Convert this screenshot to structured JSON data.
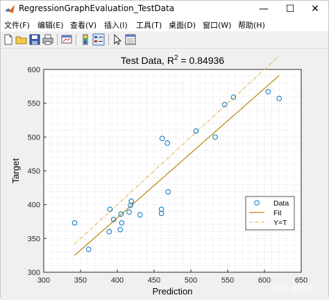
{
  "window": {
    "title": "RegressionGraphEvaluation_TestData"
  },
  "menu": [
    "文件(F)",
    "编辑(E)",
    "查看(V)",
    "插入(I)",
    "工具(T)",
    "桌面(D)",
    "窗口(W)",
    "帮助(H)"
  ],
  "title_controls": {
    "minimize": "—",
    "maximize": "☐",
    "close": "✕"
  },
  "toolbar": [
    "new-file-icon",
    "open-folder-icon",
    "save-icon",
    "print-icon",
    "link-plot-icon",
    "insert-colorbar-icon",
    "insert-legend-icon",
    "pointer-icon",
    "property-editor-icon"
  ],
  "watermark": "知乎 @李烨",
  "chart_data": {
    "type": "scatter",
    "title_prefix": "Test Data, R",
    "title_sup": "2",
    "title_suffix": " = 0.84936",
    "xlabel": "Prediction",
    "ylabel": "Target",
    "xlim": [
      300,
      650
    ],
    "ylim": [
      300,
      600
    ],
    "xticks": [
      300,
      350,
      400,
      450,
      500,
      550,
      600,
      650
    ],
    "yticks": [
      300,
      350,
      400,
      450,
      500,
      550,
      600
    ],
    "grid": true,
    "legend_position": "bottom-right",
    "legend": [
      "Data",
      "Fit",
      "Y=T"
    ],
    "colors": {
      "data": "#0072bd",
      "fit": "#b8860b",
      "yt": "#e8b35a"
    },
    "series": [
      {
        "name": "Data",
        "points": [
          [
            342,
            373
          ],
          [
            361,
            334
          ],
          [
            389,
            360
          ],
          [
            390,
            393
          ],
          [
            395,
            378
          ],
          [
            404,
            363
          ],
          [
            405,
            386
          ],
          [
            406,
            373
          ],
          [
            416,
            389
          ],
          [
            418,
            399
          ],
          [
            419,
            405
          ],
          [
            431,
            385
          ],
          [
            460,
            387
          ],
          [
            460,
            393
          ],
          [
            461,
            498
          ],
          [
            468,
            491
          ],
          [
            469,
            419
          ],
          [
            507,
            509
          ],
          [
            533,
            500
          ],
          [
            546,
            548
          ],
          [
            558,
            559
          ],
          [
            605,
            567
          ],
          [
            620,
            557
          ]
        ]
      },
      {
        "name": "Fit",
        "line": [
          [
            342,
            325
          ],
          [
            620,
            591
          ]
        ]
      },
      {
        "name": "Y=T",
        "line": [
          [
            342,
            342
          ],
          [
            620,
            620
          ]
        ]
      }
    ]
  }
}
